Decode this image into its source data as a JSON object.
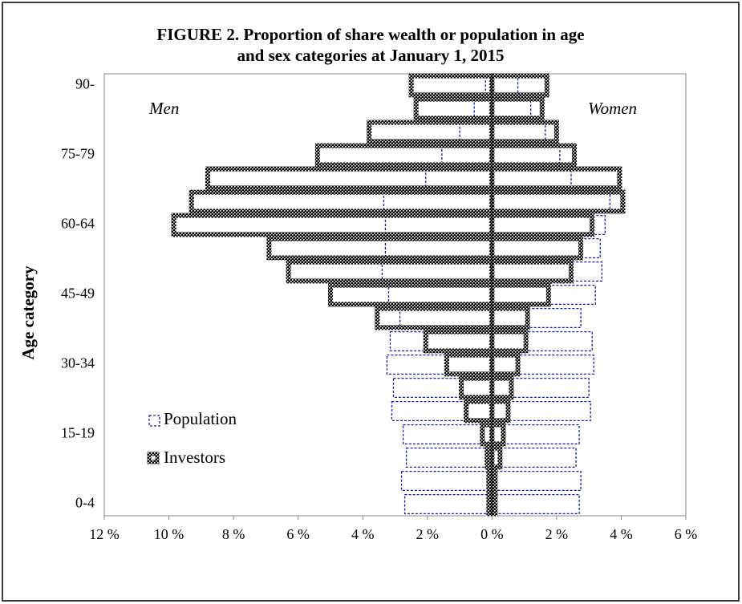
{
  "chart_data": {
    "type": "pyramid",
    "title": [
      "FIGURE 2. Proportion of share wealth or population in age",
      "and sex categories at January 1, 2015"
    ],
    "y_label": "Age category",
    "annotations": [
      "Men",
      "Women"
    ],
    "categories": [
      "0-4",
      null,
      null,
      "15-19",
      null,
      null,
      "30-34",
      null,
      null,
      "45-49",
      null,
      null,
      "60-64",
      null,
      null,
      "75-79",
      null,
      null,
      "90-"
    ],
    "series": [
      {
        "name": "Population",
        "color": "#1a1aa0",
        "men": [
          -2.7,
          -2.8,
          -2.65,
          -2.75,
          -3.1,
          -3.05,
          -3.25,
          -3.15,
          -2.85,
          -3.2,
          -3.4,
          -3.3,
          -3.3,
          -3.35,
          -2.05,
          -1.55,
          -1.0,
          -0.55,
          -0.2
        ],
        "women": [
          2.7,
          2.75,
          2.6,
          2.7,
          3.05,
          3.0,
          3.15,
          3.1,
          2.75,
          3.2,
          3.4,
          3.35,
          3.5,
          3.65,
          2.45,
          2.1,
          1.65,
          1.2,
          0.8
        ]
      },
      {
        "name": "Investors",
        "color": "#000000",
        "men": [
          -0.1,
          -0.1,
          -0.15,
          -0.3,
          -0.8,
          -0.95,
          -1.4,
          -2.05,
          -3.55,
          -5.0,
          -6.3,
          -6.9,
          -9.85,
          -9.3,
          -8.8,
          -5.4,
          -3.8,
          -2.35,
          -2.5
        ],
        "women": [
          0.1,
          0.1,
          0.25,
          0.35,
          0.5,
          0.6,
          0.8,
          1.05,
          1.1,
          1.75,
          2.45,
          2.75,
          3.1,
          4.05,
          3.95,
          2.55,
          2.0,
          1.55,
          1.7
        ]
      }
    ],
    "xlim": [
      -12,
      6
    ],
    "xticks": [
      {
        "value": -12,
        "label": "12 %"
      },
      {
        "value": -10,
        "label": "10 %"
      },
      {
        "value": -8,
        "label": "8 %"
      },
      {
        "value": -6,
        "label": "6 %"
      },
      {
        "value": -4,
        "label": "4 %"
      },
      {
        "value": -2,
        "label": "2 %"
      },
      {
        "value": 0,
        "label": "0 %"
      },
      {
        "value": 2,
        "label": "2 %"
      },
      {
        "value": 4,
        "label": "4 %"
      },
      {
        "value": 6,
        "label": "6 %"
      }
    ],
    "legend": "lower left"
  }
}
